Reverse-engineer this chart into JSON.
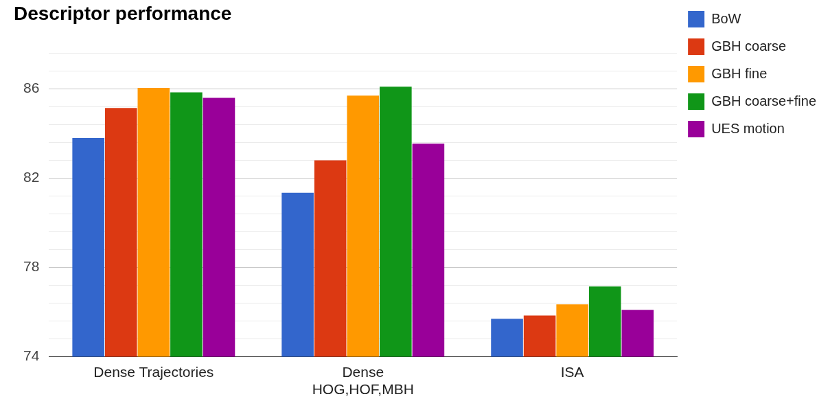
{
  "chart_data": {
    "type": "bar",
    "title": "Descriptor performance",
    "categories": [
      "Dense Trajectories",
      "Dense\nHOG,HOF,MBH",
      "ISA"
    ],
    "series": [
      {
        "name": "BoW",
        "color": "#3366cc",
        "values": [
          83.8,
          81.35,
          75.7
        ]
      },
      {
        "name": "GBH coarse",
        "color": "#dc3912",
        "values": [
          85.15,
          82.8,
          75.85
        ]
      },
      {
        "name": "GBH fine",
        "color": "#ff9900",
        "values": [
          86.05,
          85.7,
          76.35
        ]
      },
      {
        "name": "GBH coarse+fine",
        "color": "#109618",
        "values": [
          85.85,
          86.1,
          77.15
        ]
      },
      {
        "name": "UES motion",
        "color": "#990099",
        "values": [
          85.6,
          83.55,
          76.1
        ]
      }
    ],
    "ylim": [
      74,
      87.6
    ],
    "yticks": [
      74,
      {
        "value": 74.8,
        "label": null
      },
      {
        "value": 75.6,
        "label": null
      },
      {
        "value": 76.4,
        "label": null
      },
      {
        "value": 77.2,
        "label": null
      },
      78,
      {
        "value": 78.8,
        "label": null
      },
      {
        "value": 79.6,
        "label": null
      },
      {
        "value": 80.4,
        "label": null
      },
      {
        "value": 81.2,
        "label": null
      },
      82,
      {
        "value": 82.8,
        "label": null
      },
      {
        "value": 83.6,
        "label": null
      },
      {
        "value": 84.4,
        "label": null
      },
      {
        "value": 85.2,
        "label": null
      },
      86,
      {
        "value": 86.8,
        "label": null
      },
      {
        "value": 87.6,
        "label": null
      }
    ],
    "grid": "y",
    "legend": "right"
  }
}
